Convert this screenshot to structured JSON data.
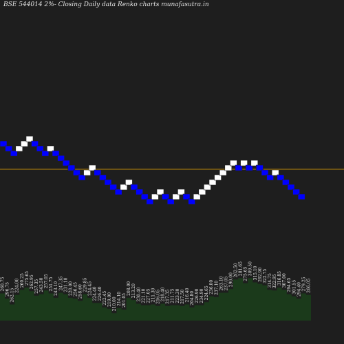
{
  "header": {
    "title": "BSE 544014  2%-  Closing Daily data  Renko  charts munafasutra.in"
  },
  "chart_data": [
    {
      "type": "renko",
      "title": "BSE 544014  2%-  Closing Daily data  Renko  charts munafasutra.in",
      "brick_pct": 2,
      "up_color": "#ffffff",
      "down_color": "#0000ff",
      "reference_line": {
        "color": "#b8860b",
        "level": 252
      },
      "bricks": [
        {
          "dir": "down",
          "level": 211
        },
        {
          "dir": "down",
          "level": 218
        },
        {
          "dir": "down",
          "level": 225
        },
        {
          "dir": "up",
          "level": 218
        },
        {
          "dir": "up",
          "level": 211
        },
        {
          "dir": "up",
          "level": 204
        },
        {
          "dir": "down",
          "level": 211
        },
        {
          "dir": "down",
          "level": 218
        },
        {
          "dir": "down",
          "level": 225
        },
        {
          "dir": "up",
          "level": 218
        },
        {
          "dir": "down",
          "level": 225
        },
        {
          "dir": "down",
          "level": 232
        },
        {
          "dir": "down",
          "level": 239
        },
        {
          "dir": "down",
          "level": 246
        },
        {
          "dir": "down",
          "level": 253
        },
        {
          "dir": "down",
          "level": 260
        },
        {
          "dir": "up",
          "level": 253
        },
        {
          "dir": "up",
          "level": 246
        },
        {
          "dir": "down",
          "level": 253
        },
        {
          "dir": "down",
          "level": 260
        },
        {
          "dir": "down",
          "level": 267
        },
        {
          "dir": "down",
          "level": 274
        },
        {
          "dir": "down",
          "level": 281
        },
        {
          "dir": "up",
          "level": 274
        },
        {
          "dir": "up",
          "level": 267
        },
        {
          "dir": "down",
          "level": 274
        },
        {
          "dir": "down",
          "level": 281
        },
        {
          "dir": "down",
          "level": 288
        },
        {
          "dir": "down",
          "level": 295
        },
        {
          "dir": "up",
          "level": 288
        },
        {
          "dir": "up",
          "level": 281
        },
        {
          "dir": "down",
          "level": 288
        },
        {
          "dir": "down",
          "level": 295
        },
        {
          "dir": "up",
          "level": 288
        },
        {
          "dir": "up",
          "level": 281
        },
        {
          "dir": "down",
          "level": 288
        },
        {
          "dir": "down",
          "level": 295
        },
        {
          "dir": "up",
          "level": 288
        },
        {
          "dir": "up",
          "level": 281
        },
        {
          "dir": "up",
          "level": 274
        },
        {
          "dir": "up",
          "level": 267
        },
        {
          "dir": "up",
          "level": 260
        },
        {
          "dir": "up",
          "level": 253
        },
        {
          "dir": "up",
          "level": 246
        },
        {
          "dir": "up",
          "level": 239
        },
        {
          "dir": "down",
          "level": 246
        },
        {
          "dir": "up",
          "level": 239
        },
        {
          "dir": "down",
          "level": 246
        },
        {
          "dir": "up",
          "level": 239
        },
        {
          "dir": "down",
          "level": 246
        },
        {
          "dir": "down",
          "level": 253
        },
        {
          "dir": "down",
          "level": 260
        },
        {
          "dir": "up",
          "level": 253
        },
        {
          "dir": "down",
          "level": 260
        },
        {
          "dir": "down",
          "level": 267
        },
        {
          "dir": "down",
          "level": 274
        },
        {
          "dir": "down",
          "level": 281
        },
        {
          "dir": "down",
          "level": 288
        }
      ]
    },
    {
      "type": "bar",
      "fill_color": "#1b3a1b",
      "values": [
        370,
        300,
        220,
        350,
        420,
        450,
        400,
        340,
        360,
        410,
        370,
        310,
        380,
        360,
        310,
        300,
        270,
        360,
        310,
        240,
        240,
        180,
        160,
        100,
        170,
        150,
        310,
        280,
        230,
        210,
        210,
        220,
        200,
        230,
        200,
        210,
        210,
        200,
        220,
        180,
        210,
        210,
        250,
        330,
        320,
        380,
        380,
        430,
        560,
        580,
        510,
        580,
        520,
        500,
        480,
        420,
        410,
        450,
        420,
        360,
        330,
        300,
        370,
        350
      ],
      "labels": [
        "260.75",
        "296.75",
        "262.15",
        "224.00",
        "260.25",
        "275.65",
        "262.95",
        "257.35",
        "243.50",
        "257.05",
        "251.75",
        "243.10",
        "247.35",
        "231.10",
        "220.00",
        "256.45",
        "258.60",
        "229.85",
        "224.45",
        "224.40",
        "226.40",
        "222.45",
        "219.00",
        "210.00",
        "214.10",
        "201.05",
        "208.00",
        "213.20",
        "230.40",
        "221.10",
        "227.05",
        "211.30",
        "216.05",
        "218.40",
        "217.35",
        "211.75",
        "223.30",
        "217.50",
        "216.40",
        "204.80",
        "226.90",
        "234.90",
        "224.65",
        "236.00",
        "237.10",
        "263.10",
        "237.05",
        "290.00",
        "262.50",
        "281.65",
        "275.65",
        "309.50",
        "315.10",
        "292.90",
        "322.75",
        "314.75",
        "322.95",
        "316.85",
        "307.00",
        "294.65",
        "301.55",
        "294.40",
        "279.25",
        "266.05"
      ]
    }
  ]
}
